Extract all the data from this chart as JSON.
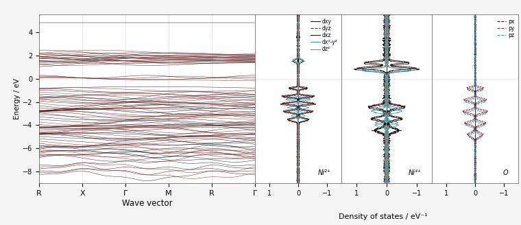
{
  "ylim": [
    -9,
    5.5
  ],
  "yticks": [
    -8,
    -6,
    -4,
    -2,
    0,
    2,
    4
  ],
  "ylabel": "Energy / eV",
  "xlabel_band": "Wave vector",
  "xlabel_dos": "Density of states / eV⁻¹",
  "kpoints": [
    "R",
    "X",
    "Γ",
    "M",
    "R",
    "Γ"
  ],
  "kpoint_positions": [
    0,
    1,
    2,
    3,
    4,
    5
  ],
  "bg_color": "#ffffff",
  "d_legend_labels": [
    "dxy",
    "dyz",
    "dxz",
    "dx²-y²",
    "dz²"
  ],
  "d_legend_colors": [
    "#1a1a1a",
    "#cc0000",
    "#1a1a1a",
    "#00aacc",
    "#888888"
  ],
  "d_legend_styles": [
    "-",
    "--",
    "-",
    "-",
    "-"
  ],
  "p_legend_labels": [
    "px",
    "py",
    "pz"
  ],
  "p_legend_colors": [
    "#1a1a1a",
    "#cc0000",
    "#00aacc"
  ],
  "p_legend_styles": [
    "--",
    "--",
    "--"
  ],
  "ni2_label": "Ni²⁺",
  "ni4_label": "Ni⁴⁺",
  "o_label": "O"
}
